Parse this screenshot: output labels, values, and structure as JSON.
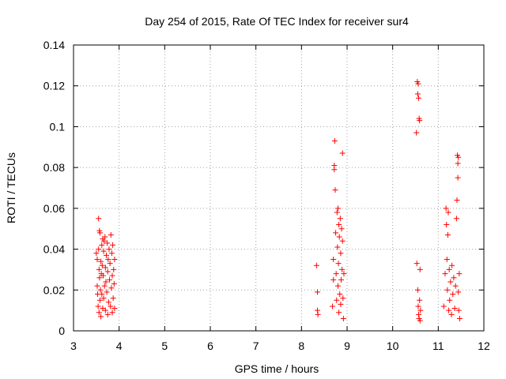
{
  "chart_data": {
    "type": "scatter",
    "title": "Day 254 of 2015, Rate Of TEC Index for receiver sur4",
    "xlabel": "GPS time / hours",
    "ylabel": "ROTI / TECUs",
    "xlim": [
      3,
      12
    ],
    "ylim": [
      0,
      0.14
    ],
    "xticks": [
      3,
      4,
      5,
      6,
      7,
      8,
      9,
      10,
      11,
      12
    ],
    "yticks": [
      0,
      0.02,
      0.04,
      0.06,
      0.08,
      0.1,
      0.12,
      0.14
    ],
    "xtick_labels": [
      "3",
      "4",
      "5",
      "6",
      "7",
      "8",
      "9",
      "10",
      "11",
      "12"
    ],
    "ytick_labels": [
      "0",
      "0.02",
      "0.04",
      "0.06",
      "0.08",
      "0.1",
      "0.12",
      "0.14"
    ],
    "grid": true,
    "marker": "+",
    "color": "#ff0000",
    "series": [
      {
        "name": "sur4",
        "points": [
          [
            3.5,
            0.038
          ],
          [
            3.52,
            0.035
          ],
          [
            3.52,
            0.022
          ],
          [
            3.53,
            0.018
          ],
          [
            3.54,
            0.012
          ],
          [
            3.55,
            0.055
          ],
          [
            3.55,
            0.04
          ],
          [
            3.56,
            0.03
          ],
          [
            3.56,
            0.009
          ],
          [
            3.57,
            0.049
          ],
          [
            3.57,
            0.026
          ],
          [
            3.58,
            0.048
          ],
          [
            3.58,
            0.015
          ],
          [
            3.59,
            0.02
          ],
          [
            3.6,
            0.034
          ],
          [
            3.6,
            0.007
          ],
          [
            3.61,
            0.028
          ],
          [
            3.62,
            0.042
          ],
          [
            3.62,
            0.018
          ],
          [
            3.63,
            0.032
          ],
          [
            3.64,
            0.045
          ],
          [
            3.64,
            0.011
          ],
          [
            3.65,
            0.027
          ],
          [
            3.66,
            0.039
          ],
          [
            3.66,
            0.016
          ],
          [
            3.67,
            0.044
          ],
          [
            3.68,
            0.022
          ],
          [
            3.69,
            0.046
          ],
          [
            3.7,
            0.031
          ],
          [
            3.7,
            0.01
          ],
          [
            3.71,
            0.024
          ],
          [
            3.72,
            0.037
          ],
          [
            3.73,
            0.019
          ],
          [
            3.74,
            0.043
          ],
          [
            3.75,
            0.029
          ],
          [
            3.75,
            0.008
          ],
          [
            3.76,
            0.035
          ],
          [
            3.77,
            0.014
          ],
          [
            3.78,
            0.04
          ],
          [
            3.79,
            0.025
          ],
          [
            3.8,
            0.033
          ],
          [
            3.81,
            0.012
          ],
          [
            3.82,
            0.047
          ],
          [
            3.83,
            0.021
          ],
          [
            3.84,
            0.038
          ],
          [
            3.85,
            0.027
          ],
          [
            3.85,
            0.009
          ],
          [
            3.86,
            0.042
          ],
          [
            3.87,
            0.016
          ],
          [
            3.88,
            0.03
          ],
          [
            3.89,
            0.023
          ],
          [
            3.9,
            0.035
          ],
          [
            3.9,
            0.011
          ],
          [
            8.33,
            0.032
          ],
          [
            8.35,
            0.019
          ],
          [
            8.35,
            0.01
          ],
          [
            8.36,
            0.008
          ],
          [
            8.68,
            0.012
          ],
          [
            8.7,
            0.035
          ],
          [
            8.7,
            0.025
          ],
          [
            8.72,
            0.081
          ],
          [
            8.72,
            0.079
          ],
          [
            8.73,
            0.093
          ],
          [
            8.74,
            0.069
          ],
          [
            8.75,
            0.048
          ],
          [
            8.76,
            0.028
          ],
          [
            8.77,
            0.015
          ],
          [
            8.78,
            0.058
          ],
          [
            8.79,
            0.041
          ],
          [
            8.8,
            0.06
          ],
          [
            8.8,
            0.022
          ],
          [
            8.81,
            0.033
          ],
          [
            8.82,
            0.052
          ],
          [
            8.82,
            0.009
          ],
          [
            8.83,
            0.046
          ],
          [
            8.84,
            0.018
          ],
          [
            8.85,
            0.055
          ],
          [
            8.86,
            0.038
          ],
          [
            8.86,
            0.013
          ],
          [
            8.87,
            0.025
          ],
          [
            8.88,
            0.05
          ],
          [
            8.89,
            0.03
          ],
          [
            8.9,
            0.087
          ],
          [
            8.9,
            0.044
          ],
          [
            8.91,
            0.016
          ],
          [
            8.92,
            0.006
          ],
          [
            8.93,
            0.028
          ],
          [
            10.52,
            0.097
          ],
          [
            10.53,
            0.033
          ],
          [
            10.54,
            0.122
          ],
          [
            10.55,
            0.116
          ],
          [
            10.56,
            0.121
          ],
          [
            10.57,
            0.114
          ],
          [
            10.58,
            0.104
          ],
          [
            10.59,
            0.103
          ],
          [
            10.55,
            0.02
          ],
          [
            10.56,
            0.012
          ],
          [
            10.57,
            0.008
          ],
          [
            10.58,
            0.006
          ],
          [
            10.59,
            0.015
          ],
          [
            10.6,
            0.03
          ],
          [
            10.6,
            0.005
          ],
          [
            10.61,
            0.01
          ],
          [
            11.12,
            0.012
          ],
          [
            11.15,
            0.028
          ],
          [
            11.17,
            0.06
          ],
          [
            11.18,
            0.052
          ],
          [
            11.19,
            0.035
          ],
          [
            11.2,
            0.02
          ],
          [
            11.21,
            0.047
          ],
          [
            11.22,
            0.058
          ],
          [
            11.23,
            0.01
          ],
          [
            11.24,
            0.03
          ],
          [
            11.25,
            0.015
          ],
          [
            11.27,
            0.024
          ],
          [
            11.29,
            0.008
          ],
          [
            11.3,
            0.032
          ],
          [
            11.32,
            0.018
          ],
          [
            11.34,
            0.026
          ],
          [
            11.36,
            0.011
          ],
          [
            11.38,
            0.022
          ],
          [
            11.4,
            0.055
          ],
          [
            11.41,
            0.064
          ],
          [
            11.42,
            0.086
          ],
          [
            11.43,
            0.082
          ],
          [
            11.43,
            0.075
          ],
          [
            11.44,
            0.085
          ],
          [
            11.44,
            0.019
          ],
          [
            11.45,
            0.01
          ],
          [
            11.46,
            0.028
          ],
          [
            11.47,
            0.006
          ]
        ]
      }
    ]
  }
}
